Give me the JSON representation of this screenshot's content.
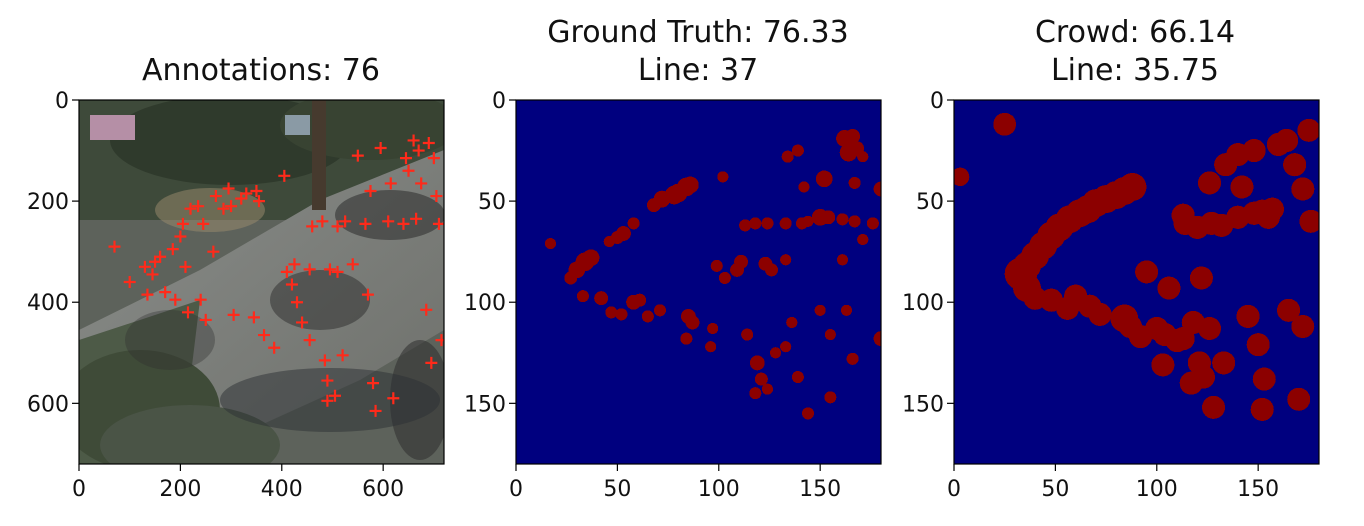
{
  "chart_data": [
    {
      "type": "heatmap",
      "panel": "photo-with-annotations",
      "title": "Annotations: 76",
      "title_lines": [
        "Annotations: 76"
      ],
      "xlim": [
        0,
        720
      ],
      "ylim": [
        720,
        0
      ],
      "xticks": [
        0,
        200,
        400,
        600
      ],
      "yticks": [
        0,
        200,
        400,
        600
      ],
      "marker_color": "#ff2a1a",
      "annotations": [
        [
          70,
          290
        ],
        [
          100,
          360
        ],
        [
          130,
          330
        ],
        [
          135,
          385
        ],
        [
          150,
          320
        ],
        [
          145,
          345
        ],
        [
          160,
          310
        ],
        [
          170,
          380
        ],
        [
          185,
          295
        ],
        [
          190,
          395
        ],
        [
          200,
          270
        ],
        [
          205,
          245
        ],
        [
          210,
          330
        ],
        [
          215,
          420
        ],
        [
          220,
          215
        ],
        [
          235,
          210
        ],
        [
          245,
          245
        ],
        [
          240,
          395
        ],
        [
          250,
          435
        ],
        [
          265,
          300
        ],
        [
          270,
          190
        ],
        [
          285,
          215
        ],
        [
          295,
          175
        ],
        [
          300,
          210
        ],
        [
          305,
          425
        ],
        [
          320,
          195
        ],
        [
          330,
          185
        ],
        [
          345,
          430
        ],
        [
          350,
          180
        ],
        [
          355,
          200
        ],
        [
          365,
          465
        ],
        [
          385,
          490
        ],
        [
          405,
          150
        ],
        [
          410,
          340
        ],
        [
          420,
          365
        ],
        [
          425,
          325
        ],
        [
          430,
          400
        ],
        [
          440,
          440
        ],
        [
          455,
          335
        ],
        [
          455,
          475
        ],
        [
          460,
          250
        ],
        [
          480,
          240
        ],
        [
          485,
          515
        ],
        [
          490,
          555
        ],
        [
          490,
          595
        ],
        [
          495,
          335
        ],
        [
          505,
          585
        ],
        [
          510,
          250
        ],
        [
          510,
          340
        ],
        [
          520,
          505
        ],
        [
          525,
          240
        ],
        [
          540,
          325
        ],
        [
          550,
          110
        ],
        [
          565,
          245
        ],
        [
          570,
          385
        ],
        [
          575,
          180
        ],
        [
          580,
          560
        ],
        [
          585,
          615
        ],
        [
          595,
          95
        ],
        [
          610,
          240
        ],
        [
          615,
          165
        ],
        [
          620,
          590
        ],
        [
          640,
          245
        ],
        [
          645,
          115
        ],
        [
          650,
          140
        ],
        [
          660,
          80
        ],
        [
          665,
          235
        ],
        [
          670,
          100
        ],
        [
          675,
          165
        ],
        [
          685,
          415
        ],
        [
          695,
          520
        ],
        [
          690,
          85
        ],
        [
          700,
          115
        ],
        [
          705,
          190
        ],
        [
          710,
          245
        ],
        [
          715,
          475
        ]
      ]
    },
    {
      "type": "heatmap",
      "panel": "ground-truth-density",
      "title": "Ground Truth: 76.33",
      "title_lines": [
        "Ground Truth: 76.33",
        "Line: 37"
      ],
      "xlim": [
        0,
        180
      ],
      "ylim": [
        180,
        0
      ],
      "xticks": [
        0,
        50,
        100,
        150
      ],
      "yticks": [
        0,
        50,
        100,
        150
      ],
      "colormap": "jet",
      "blobs": [
        [
          17,
          71,
          1.2,
          0.55
        ],
        [
          27,
          88,
          1.4,
          0.7
        ],
        [
          30,
          84,
          1.8,
          0.85
        ],
        [
          34,
          80,
          2.0,
          0.95
        ],
        [
          37,
          78,
          1.8,
          0.9
        ],
        [
          33,
          97,
          1.3,
          0.6
        ],
        [
          42,
          98,
          1.5,
          0.75
        ],
        [
          47,
          105,
          1.3,
          0.6
        ],
        [
          52,
          106,
          1.3,
          0.6
        ],
        [
          58,
          100,
          1.6,
          0.8
        ],
        [
          61,
          99,
          1.4,
          0.7
        ],
        [
          46,
          70,
          1.2,
          0.55
        ],
        [
          50,
          68,
          1.4,
          0.7
        ],
        [
          53,
          66,
          1.6,
          0.8
        ],
        [
          58,
          61,
          1.3,
          0.6
        ],
        [
          68,
          52,
          1.5,
          0.75
        ],
        [
          72,
          49,
          1.8,
          0.9
        ],
        [
          78,
          47,
          2.0,
          0.95
        ],
        [
          80,
          46,
          2.0,
          0.95
        ],
        [
          84,
          43,
          2.0,
          1.0
        ],
        [
          86,
          42,
          1.8,
          0.95
        ],
        [
          65,
          107,
          1.3,
          0.6
        ],
        [
          71,
          104,
          1.3,
          0.6
        ],
        [
          85,
          107,
          1.6,
          0.8
        ],
        [
          87,
          110,
          1.5,
          0.75
        ],
        [
          84,
          118,
          1.3,
          0.6
        ],
        [
          97,
          113,
          1.2,
          0.55
        ],
        [
          96,
          122,
          1.2,
          0.55
        ],
        [
          102,
          38,
          1.2,
          0.55
        ],
        [
          99,
          82,
          1.3,
          0.6
        ],
        [
          103,
          88,
          1.3,
          0.6
        ],
        [
          109,
          84,
          1.5,
          0.75
        ],
        [
          111,
          80,
          1.5,
          0.75
        ],
        [
          113,
          62,
          1.3,
          0.6
        ],
        [
          118,
          61,
          1.3,
          0.6
        ],
        [
          124,
          61,
          1.3,
          0.6
        ],
        [
          123,
          81,
          1.5,
          0.75
        ],
        [
          126,
          84,
          1.4,
          0.7
        ],
        [
          133,
          79,
          1.2,
          0.55
        ],
        [
          133,
          61,
          1.3,
          0.6
        ],
        [
          141,
          61,
          1.3,
          0.6
        ],
        [
          150,
          58,
          1.8,
          0.9
        ],
        [
          154,
          58,
          1.5,
          0.75
        ],
        [
          161,
          59,
          1.3,
          0.6
        ],
        [
          167,
          60,
          1.3,
          0.6
        ],
        [
          176,
          61,
          1.3,
          0.6
        ],
        [
          134,
          28,
          1.3,
          0.6
        ],
        [
          139,
          25,
          1.3,
          0.6
        ],
        [
          142,
          43,
          1.2,
          0.55
        ],
        [
          144,
          60,
          1.2,
          0.55
        ],
        [
          152,
          39,
          1.8,
          0.9
        ],
        [
          162,
          19,
          1.8,
          0.9
        ],
        [
          164,
          26,
          1.9,
          0.95
        ],
        [
          166,
          18,
          1.6,
          0.8
        ],
        [
          168,
          24,
          1.6,
          0.8
        ],
        [
          171,
          28,
          1.2,
          0.55
        ],
        [
          167,
          41,
          1.3,
          0.6
        ],
        [
          180,
          44,
          1.6,
          0.8
        ],
        [
          114,
          116,
          1.3,
          0.6
        ],
        [
          119,
          130,
          1.6,
          0.8
        ],
        [
          121,
          138,
          1.4,
          0.7
        ],
        [
          124,
          143,
          1.2,
          0.55
        ],
        [
          118,
          145,
          1.3,
          0.6
        ],
        [
          133,
          122,
          1.2,
          0.55
        ],
        [
          139,
          137,
          1.3,
          0.6
        ],
        [
          144,
          155,
          1.3,
          0.6
        ],
        [
          155,
          147,
          1.3,
          0.6
        ],
        [
          163,
          104,
          1.2,
          0.55
        ],
        [
          166,
          128,
          1.3,
          0.6
        ],
        [
          180,
          118,
          1.6,
          0.8
        ],
        [
          171,
          69,
          1.2,
          0.55
        ],
        [
          161,
          79,
          1.2,
          0.55
        ],
        [
          155,
          116,
          1.2,
          0.55
        ],
        [
          136,
          110,
          1.2,
          0.55
        ],
        [
          150,
          104,
          1.2,
          0.55
        ],
        [
          128,
          125,
          1.2,
          0.55
        ]
      ]
    },
    {
      "type": "heatmap",
      "panel": "crowd-density",
      "title": "Crowd: 66.14",
      "title_lines": [
        "Crowd: 66.14",
        "Line: 35.75"
      ],
      "xlim": [
        0,
        180
      ],
      "ylim": [
        180,
        0
      ],
      "xticks": [
        0,
        50,
        100,
        150
      ],
      "yticks": [
        0,
        50,
        100,
        150
      ],
      "colormap": "jet",
      "blobs": [
        [
          33,
          86,
          3.5,
          0.55
        ],
        [
          36,
          82,
          3.0,
          0.75
        ],
        [
          40,
          77,
          3.0,
          0.85
        ],
        [
          44,
          72,
          3.0,
          0.7
        ],
        [
          48,
          67,
          3.0,
          0.65
        ],
        [
          52,
          63,
          3.0,
          0.6
        ],
        [
          57,
          59,
          3.0,
          0.55
        ],
        [
          62,
          56,
          3.0,
          0.6
        ],
        [
          66,
          54,
          3.0,
          0.65
        ],
        [
          70,
          51,
          3.0,
          0.7
        ],
        [
          75,
          49,
          3.0,
          0.75
        ],
        [
          80,
          47,
          3.0,
          0.85
        ],
        [
          84,
          45,
          3.0,
          0.9
        ],
        [
          88,
          43,
          3.0,
          0.85
        ],
        [
          36,
          93,
          3.0,
          0.5
        ],
        [
          40,
          98,
          2.5,
          0.7
        ],
        [
          48,
          99,
          2.5,
          0.45
        ],
        [
          56,
          103,
          2.5,
          0.4
        ],
        [
          60,
          97,
          2.5,
          0.5
        ],
        [
          67,
          102,
          2.5,
          0.4
        ],
        [
          72,
          106,
          2.5,
          0.35
        ],
        [
          84,
          108,
          3.0,
          0.55
        ],
        [
          87,
          112,
          2.5,
          0.5
        ],
        [
          92,
          117,
          2.5,
          0.35
        ],
        [
          100,
          113,
          2.5,
          0.5
        ],
        [
          104,
          116,
          2.5,
          0.55
        ],
        [
          110,
          119,
          2.5,
          0.5
        ],
        [
          113,
          118,
          2.5,
          0.45
        ],
        [
          114,
          61,
          2.5,
          0.6
        ],
        [
          113,
          57,
          2.5,
          0.45
        ],
        [
          120,
          63,
          2.5,
          0.35
        ],
        [
          127,
          61,
          2.5,
          0.3
        ],
        [
          132,
          62,
          2.5,
          0.3
        ],
        [
          140,
          58,
          2.5,
          0.45
        ],
        [
          148,
          56,
          2.5,
          0.55
        ],
        [
          152,
          55,
          2.5,
          0.5
        ],
        [
          157,
          54,
          2.5,
          0.5
        ],
        [
          155,
          58,
          2.5,
          0.55
        ],
        [
          126,
          41,
          2.5,
          0.25
        ],
        [
          134,
          32,
          2.5,
          0.25
        ],
        [
          140,
          27,
          2.5,
          0.3
        ],
        [
          148,
          25,
          2.5,
          0.35
        ],
        [
          160,
          22,
          2.5,
          0.45
        ],
        [
          164,
          20,
          2.5,
          0.55
        ],
        [
          168,
          32,
          2.5,
          0.3
        ],
        [
          172,
          44,
          2.5,
          0.25
        ],
        [
          176,
          60,
          2.5,
          0.2
        ],
        [
          142,
          43,
          2.5,
          0.2
        ],
        [
          122,
          88,
          2.5,
          0.2
        ],
        [
          106,
          93,
          2.5,
          0.2
        ],
        [
          95,
          85,
          2.5,
          0.2
        ],
        [
          118,
          110,
          2.5,
          0.25
        ],
        [
          126,
          113,
          2.5,
          0.2
        ],
        [
          121,
          130,
          2.5,
          0.45
        ],
        [
          123,
          137,
          2.5,
          0.4
        ],
        [
          117,
          140,
          2.5,
          0.3
        ],
        [
          145,
          107,
          2.5,
          0.55
        ],
        [
          150,
          121,
          2.5,
          0.2
        ],
        [
          153,
          138,
          2.5,
          0.2
        ],
        [
          165,
          104,
          2.5,
          0.25
        ],
        [
          172,
          112,
          2.5,
          0.2
        ],
        [
          133,
          130,
          2.5,
          0.25
        ],
        [
          103,
          131,
          2.5,
          0.2
        ],
        [
          128,
          152,
          2.5,
          0.2
        ],
        [
          152,
          153,
          2.5,
          0.25
        ],
        [
          170,
          148,
          2.5,
          0.15
        ],
        [
          3,
          38,
          2.0,
          0.2
        ],
        [
          25,
          12,
          2.5,
          0.1
        ],
        [
          175,
          15,
          2.5,
          0.2
        ]
      ]
    }
  ]
}
